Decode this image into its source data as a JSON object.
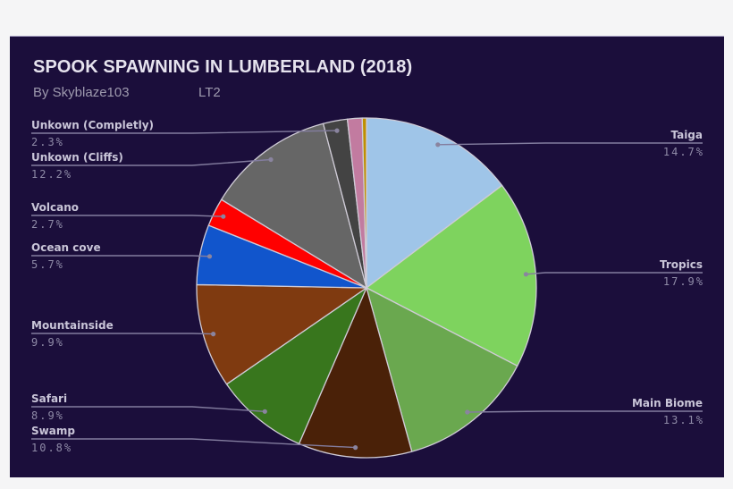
{
  "chart_data": {
    "type": "pie",
    "title": "SPOOK SPAWNING IN LUMBERLAND (2018)",
    "subtitle": "By Skyblaze103",
    "subtitle_tag": "LT2",
    "start": "12 o'clock",
    "direction": "clockwise",
    "legend_position": "leader-line labels",
    "slices": [
      {
        "label": "Taiga",
        "value": 14.7,
        "value_label": "14.7%",
        "color": "#9fc5e8"
      },
      {
        "label": "Tropics",
        "value": 17.9,
        "value_label": "17.9%",
        "color": "#7ed35e"
      },
      {
        "label": "Main Biome",
        "value": 13.1,
        "value_label": "13.1%",
        "color": "#6aa84f"
      },
      {
        "label": "Swamp",
        "value": 10.8,
        "value_label": "10.8%",
        "color": "#4a2108"
      },
      {
        "label": "Safari",
        "value": 8.9,
        "value_label": "8.9%",
        "color": "#38761d"
      },
      {
        "label": "Mountainside",
        "value": 9.9,
        "value_label": "9.9%",
        "color": "#7f3a10"
      },
      {
        "label": "Ocean cove",
        "value": 5.7,
        "value_label": "5.7%",
        "color": "#1155cc"
      },
      {
        "label": "Volcano",
        "value": 2.7,
        "value_label": "2.7%",
        "color": "#ff0000"
      },
      {
        "label": "Unkown (Cliffs)",
        "value": 12.2,
        "value_label": "12.2%",
        "color": "#666666"
      },
      {
        "label": "Unkown (Completly)",
        "value": 2.3,
        "value_label": "2.3%",
        "color": "#434343"
      },
      {
        "label": "",
        "value": 1.4,
        "value_label": "",
        "color": "#c27ba0"
      },
      {
        "label": "",
        "value": 0.4,
        "value_label": "",
        "color": "#bf9000"
      }
    ]
  }
}
